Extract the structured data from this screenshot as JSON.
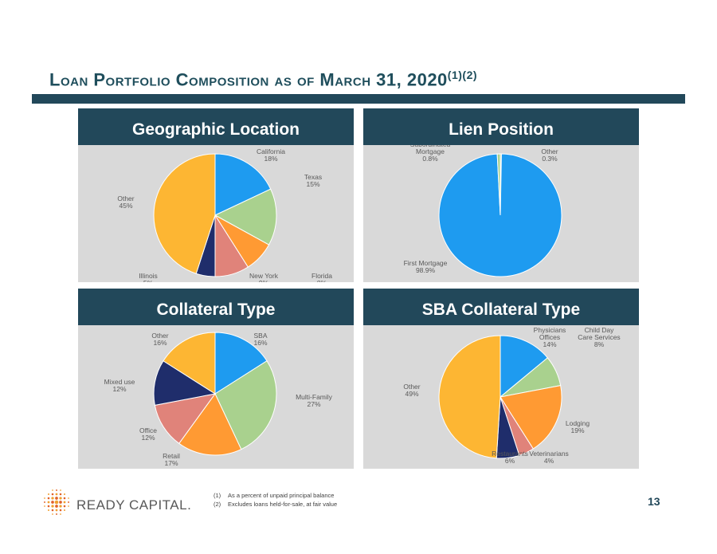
{
  "title": {
    "main": "Loan Portfolio Composition as of March 31, 2020",
    "sup": "(1)(2)"
  },
  "panels": [
    {
      "heading": "Geographic Location"
    },
    {
      "heading": "Lien Position"
    },
    {
      "heading": "Collateral Type"
    },
    {
      "heading": "SBA Collateral Type"
    }
  ],
  "chart_data": [
    {
      "type": "pie",
      "title": "Geographic Location",
      "slices": [
        {
          "label": "California",
          "value": 18,
          "value_label": "18%",
          "color": "#1e9bf0"
        },
        {
          "label": "Texas",
          "value": 15,
          "value_label": "15%",
          "color": "#a9d18e"
        },
        {
          "label": "Florida",
          "value": 8,
          "value_label": "8%",
          "color": "#ff9a33"
        },
        {
          "label": "New York",
          "value": 9,
          "value_label": "9%",
          "color": "#e0837a"
        },
        {
          "label": "Illinois",
          "value": 5,
          "value_label": "5%",
          "color": "#1f2d6b"
        },
        {
          "label": "Other",
          "value": 45,
          "value_label": "45%",
          "color": "#fdb633"
        }
      ]
    },
    {
      "type": "pie",
      "title": "Lien Position",
      "slices": [
        {
          "label": "Other",
          "value": 0.3,
          "value_label": "0.3%",
          "color": "#a9d18e"
        },
        {
          "label": "First Mortgage",
          "value": 98.9,
          "value_label": "98.9%",
          "color": "#1e9bf0"
        },
        {
          "label": "Subordinated Mortgage",
          "value": 0.8,
          "value_label": "0.8%",
          "color": "#a9d18e"
        }
      ]
    },
    {
      "type": "pie",
      "title": "Collateral Type",
      "slices": [
        {
          "label": "SBA",
          "value": 16,
          "value_label": "16%",
          "color": "#1e9bf0"
        },
        {
          "label": "Multi-Family",
          "value": 27,
          "value_label": "27%",
          "color": "#a9d18e"
        },
        {
          "label": "Retail",
          "value": 17,
          "value_label": "17%",
          "color": "#ff9a33"
        },
        {
          "label": "Office",
          "value": 12,
          "value_label": "12%",
          "color": "#e0837a"
        },
        {
          "label": "Mixed use",
          "value": 12,
          "value_label": "12%",
          "color": "#1f2d6b"
        },
        {
          "label": "Other",
          "value": 16,
          "value_label": "16%",
          "color": "#fdb633"
        }
      ]
    },
    {
      "type": "pie",
      "title": "SBA Collateral Type",
      "slices": [
        {
          "label": "Physicians Offices",
          "value": 14,
          "value_label": "14%",
          "color": "#1e9bf0"
        },
        {
          "label": "Child Day Care Services",
          "value": 8,
          "value_label": "8%",
          "color": "#a9d18e"
        },
        {
          "label": "Lodging",
          "value": 19,
          "value_label": "19%",
          "color": "#ff9a33"
        },
        {
          "label": "Veterinarians",
          "value": 4,
          "value_label": "4%",
          "color": "#e0837a"
        },
        {
          "label": "Restaurants",
          "value": 6,
          "value_label": "6%",
          "color": "#1f2d6b"
        },
        {
          "label": "Other",
          "value": 49,
          "value_label": "49%",
          "color": "#fdb633"
        }
      ]
    }
  ],
  "footnotes": [
    {
      "num": "(1)",
      "text": "As a percent of unpaid principal balance"
    },
    {
      "num": "(2)",
      "text": "Excludes loans held-for-sale, at fair value"
    }
  ],
  "logo": {
    "text": "READY CAPITAL."
  },
  "page_number": "13"
}
